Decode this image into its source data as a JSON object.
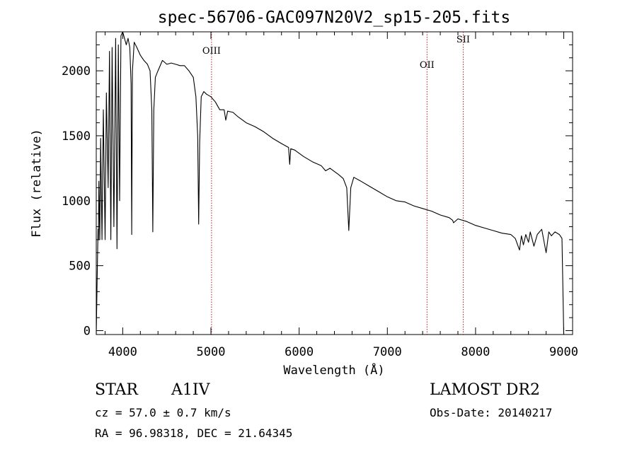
{
  "chart_data": {
    "type": "line",
    "title": "spec-56706-GAC097N20V2_sp15-205.fits",
    "xlabel": "Wavelength (Å)",
    "ylabel": "Flux (relative)",
    "xlim": [
      3700,
      9100
    ],
    "ylim": [
      -30,
      2300
    ],
    "xticks": [
      4000,
      5000,
      6000,
      7000,
      8000,
      9000
    ],
    "yticks": [
      0,
      500,
      1000,
      1500,
      2000
    ],
    "grid": false,
    "legend": "none",
    "line_color": "#000000",
    "marker_color": "#b22222",
    "lines": [
      {
        "label": "OIII",
        "x": 5007
      },
      {
        "label": "OII",
        "x": 7450
      },
      {
        "label": "SII",
        "x": 7860
      }
    ],
    "series": [
      {
        "x": [
          3700,
          3710,
          3720,
          3725,
          3730,
          3740,
          3750,
          3765,
          3780,
          3800,
          3815,
          3835,
          3850,
          3865,
          3880,
          3900,
          3920,
          3935,
          3950,
          3965,
          3980,
          4000,
          4020,
          4040,
          4060,
          4080,
          4095,
          4102,
          4110,
          4130,
          4160,
          4200,
          4240,
          4280,
          4310,
          4330,
          4341,
          4352,
          4370,
          4400,
          4450,
          4500,
          4550,
          4600,
          4650,
          4700,
          4750,
          4800,
          4830,
          4850,
          4861,
          4872,
          4890,
          4920,
          4950,
          5000,
          5050,
          5100,
          5150,
          5168,
          5190,
          5250,
          5300,
          5400,
          5500,
          5600,
          5700,
          5800,
          5880,
          5893,
          5905,
          5950,
          6050,
          6150,
          6250,
          6300,
          6350,
          6450,
          6500,
          6540,
          6563,
          6585,
          6620,
          6700,
          6800,
          6900,
          7000,
          7100,
          7200,
          7300,
          7400,
          7500,
          7600,
          7700,
          7740,
          7750,
          7800,
          7900,
          8000,
          8100,
          8200,
          8300,
          8400,
          8450,
          8498,
          8520,
          8542,
          8570,
          8600,
          8620,
          8662,
          8700,
          8750,
          8800,
          8830,
          8860,
          8900,
          8950,
          8980,
          9000
        ],
        "values": [
          -30,
          380,
          780,
          700,
          1150,
          700,
          1480,
          700,
          1700,
          700,
          1830,
          1100,
          2150,
          700,
          2180,
          800,
          2250,
          630,
          2200,
          1000,
          2270,
          2300,
          2250,
          2200,
          2250,
          2180,
          1900,
          740,
          2000,
          2220,
          2180,
          2120,
          2080,
          2050,
          2000,
          1700,
          760,
          1700,
          1950,
          2000,
          2080,
          2050,
          2060,
          2050,
          2040,
          2040,
          2000,
          1950,
          1800,
          1500,
          820,
          1450,
          1800,
          1840,
          1820,
          1800,
          1760,
          1700,
          1700,
          1620,
          1690,
          1680,
          1650,
          1600,
          1570,
          1530,
          1480,
          1440,
          1410,
          1280,
          1400,
          1390,
          1340,
          1300,
          1270,
          1230,
          1250,
          1200,
          1170,
          1100,
          770,
          1100,
          1180,
          1150,
          1110,
          1070,
          1030,
          1000,
          990,
          960,
          940,
          920,
          890,
          870,
          850,
          830,
          860,
          840,
          810,
          790,
          770,
          750,
          740,
          710,
          620,
          730,
          660,
          740,
          680,
          760,
          650,
          740,
          780,
          600,
          760,
          730,
          760,
          740,
          710,
          -30
        ]
      }
    ]
  },
  "info": {
    "object_class": "STAR",
    "subclass": "A1IV",
    "survey": "LAMOST DR2",
    "cz_line": "cz = 57.0 ± 0.7 km/s",
    "obs_date_line": "Obs-Date: 20140217",
    "coord_line": "RA =  96.98318, DEC =  21.64345"
  }
}
